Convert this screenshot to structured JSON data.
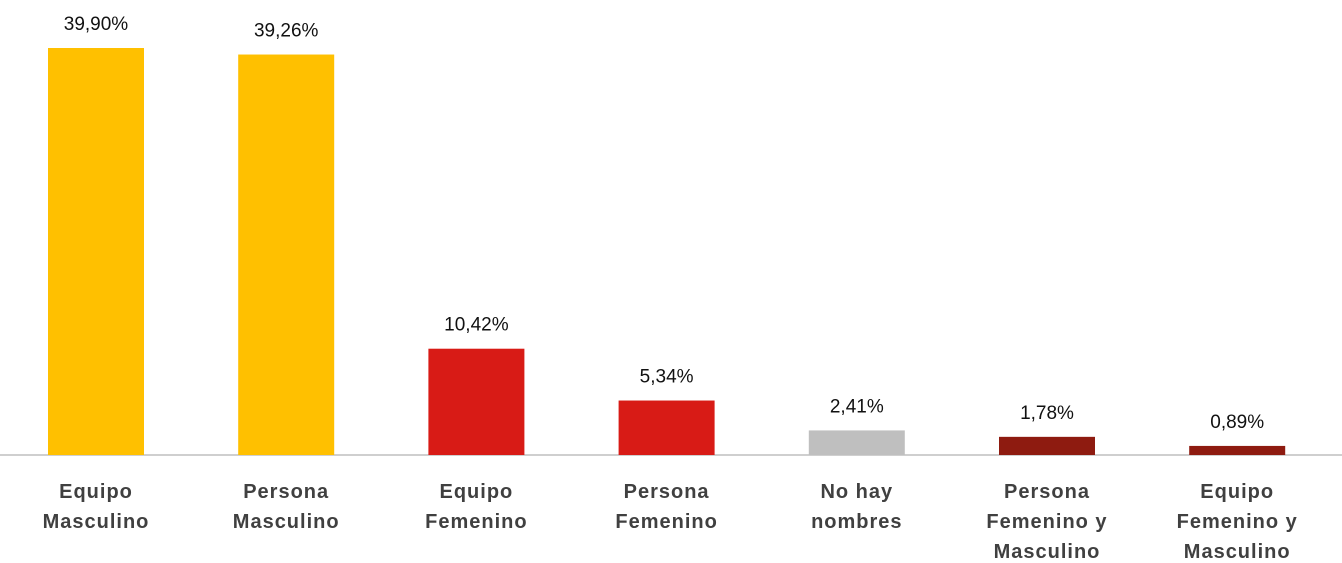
{
  "chart_data": {
    "type": "bar",
    "categories": [
      "Equipo Masculino",
      "Persona Masculino",
      "Equipo Femenino",
      "Persona Femenino",
      "No hay nombres",
      "Persona Femenino y Masculino",
      "Equipo Femenino y Masculino"
    ],
    "values": [
      39.9,
      39.26,
      10.42,
      5.34,
      2.41,
      1.78,
      0.89
    ],
    "value_labels": [
      "39,90%",
      "39,26%",
      "10,42%",
      "5,34%",
      "2,41%",
      "1,78%",
      "0,89%"
    ],
    "colors": [
      "#ffc000",
      "#ffc000",
      "#d81b16",
      "#d81b16",
      "#bfbfbf",
      "#8e1b10",
      "#8e1b10"
    ]
  }
}
